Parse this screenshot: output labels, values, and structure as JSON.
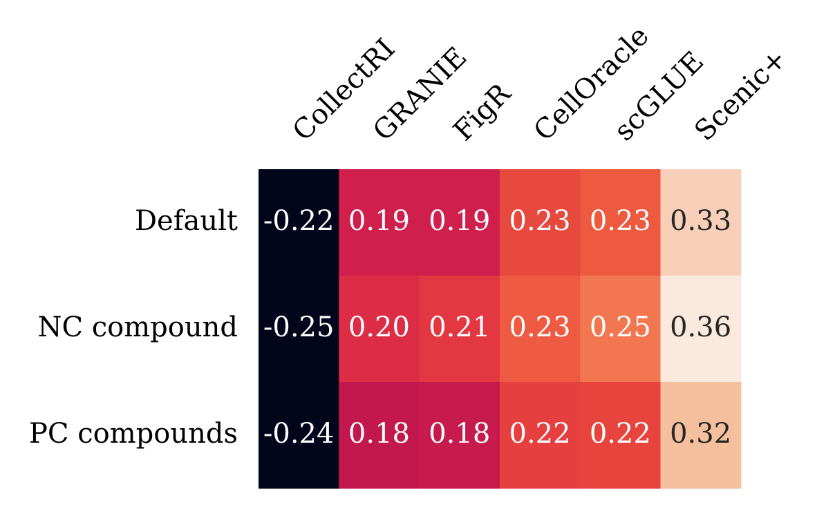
{
  "chart_data": {
    "type": "heatmap",
    "title": "",
    "xlabel": "",
    "ylabel": "",
    "columns": [
      "CollectRI",
      "GRANIE",
      "FigR",
      "CellOracle",
      "scGLUE",
      "Scenic+"
    ],
    "rows": [
      "Default",
      "NC compound",
      "PC compounds"
    ],
    "values": [
      [
        -0.22,
        0.19,
        0.19,
        0.23,
        0.23,
        0.33
      ],
      [
        -0.25,
        0.2,
        0.21,
        0.23,
        0.25,
        0.36
      ],
      [
        -0.24,
        0.18,
        0.18,
        0.22,
        0.22,
        0.32
      ]
    ],
    "value_labels": [
      [
        "-0.22",
        "0.19",
        "0.19",
        "0.23",
        "0.23",
        "0.33"
      ],
      [
        "-0.25",
        "0.20",
        "0.21",
        "0.23",
        "0.25",
        "0.36"
      ],
      [
        "-0.24",
        "0.18",
        "0.18",
        "0.22",
        "0.22",
        "0.32"
      ]
    ],
    "colormap": "rocket",
    "colorbar": false,
    "annotation_colors": {
      "light_text": "#ffffff",
      "dark_text": "#262626"
    },
    "cell_colors": [
      [
        "#03051a",
        "#d01f4c",
        "#d01f4c",
        "#e8493e",
        "#ed5a3f",
        "#f8d0b9"
      ],
      [
        "#03051a",
        "#dd2c45",
        "#e33842",
        "#ee5a42",
        "#f2764f",
        "#faeadd"
      ],
      [
        "#03051a",
        "#c3184e",
        "#c81b4d",
        "#e53f40",
        "#e8443e",
        "#f5bf9e"
      ]
    ]
  }
}
